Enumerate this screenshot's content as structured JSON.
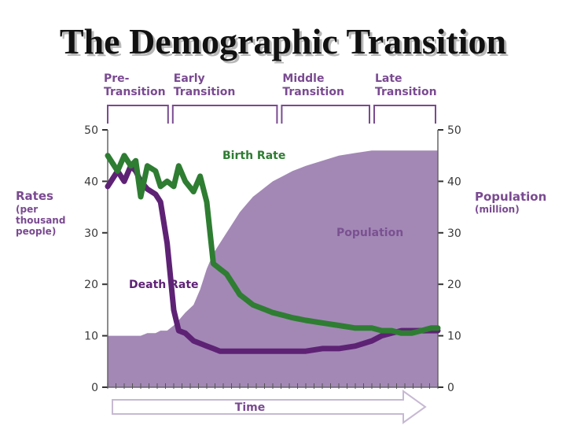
{
  "title": "The Demographic Transition",
  "phases": [
    "Pre-Transition",
    "Early Transition",
    "Middle Transition",
    "Late Transition"
  ],
  "phase_lines": [
    [
      "Pre-",
      "Transition"
    ],
    [
      "Early",
      "Transition"
    ],
    [
      "Middle",
      "Transition"
    ],
    [
      "Late",
      "Transition"
    ]
  ],
  "left_axis": {
    "title": "Rates",
    "subtitle": [
      "(per",
      "thousand",
      "people)"
    ],
    "ticks": [
      "0",
      "10",
      "20",
      "30",
      "40",
      "50"
    ]
  },
  "right_axis": {
    "title": "Population",
    "subtitle": "(million)",
    "ticks": [
      "0",
      "10",
      "20",
      "30",
      "40",
      "50"
    ]
  },
  "x_axis": {
    "title": "Time"
  },
  "series_labels": {
    "birth": "Birth Rate",
    "death": "Death Rate",
    "population": "Population"
  },
  "colors": {
    "birth": "#2e7d32",
    "death": "#5e2275",
    "population": "#a388b6",
    "phase_text": "#7a4a91",
    "axis": "#666666",
    "arrow": "#c7b9d3"
  },
  "chart_data": {
    "type": "line",
    "title": "The Demographic Transition",
    "xlabel": "Time",
    "ylabel": "Rates (per thousand people)",
    "y2label": "Population (million)",
    "ylim": [
      0,
      50
    ],
    "y2lim": [
      0,
      50
    ],
    "x": [
      0,
      3,
      5,
      7,
      8.5,
      10,
      12,
      14.5,
      16,
      18,
      20,
      21.5,
      23.5,
      26,
      28,
      30,
      32,
      34,
      36,
      38,
      40,
      42,
      44,
      46,
      48,
      50,
      53,
      56,
      60,
      65,
      70,
      75,
      80,
      83,
      86,
      89,
      92,
      95,
      98,
      100
    ],
    "series": [
      {
        "name": "Birth Rate",
        "values": [
          45,
          42,
          45,
          43,
          44,
          37,
          43,
          42,
          39,
          40,
          39,
          43,
          40,
          38,
          41,
          36,
          24,
          23,
          22,
          20,
          18,
          17,
          16,
          15.5,
          15,
          14.5,
          14,
          13.5,
          13,
          12.5,
          12,
          11.5,
          11.5,
          11,
          11,
          10.5,
          10.5,
          11,
          11.5,
          11.5
        ]
      },
      {
        "name": "Death Rate",
        "values": [
          39,
          42,
          40,
          43,
          42,
          40,
          38.5,
          37.5,
          36,
          28,
          15,
          11,
          10.5,
          9,
          8.5,
          8,
          7.5,
          7,
          7,
          7,
          7,
          7,
          7,
          7,
          7,
          7,
          7,
          7,
          7,
          7.5,
          7.5,
          8,
          9,
          10,
          10.5,
          11,
          11,
          11,
          11,
          11
        ]
      },
      {
        "name": "Population",
        "values": [
          10,
          10,
          10,
          10,
          10,
          10,
          10.5,
          10.5,
          11,
          11,
          12,
          13,
          14.5,
          16,
          19,
          23,
          26,
          28,
          30,
          32,
          34,
          35.5,
          37,
          38,
          39,
          40,
          41,
          42,
          43,
          44,
          45,
          45.5,
          46,
          46,
          46,
          46,
          46,
          46,
          46,
          46
        ]
      }
    ],
    "phases": [
      "Pre-Transition",
      "Early Transition",
      "Middle Transition",
      "Late Transition"
    ],
    "phase_bounds": [
      0,
      19,
      52,
      80,
      100
    ],
    "grid": false
  }
}
